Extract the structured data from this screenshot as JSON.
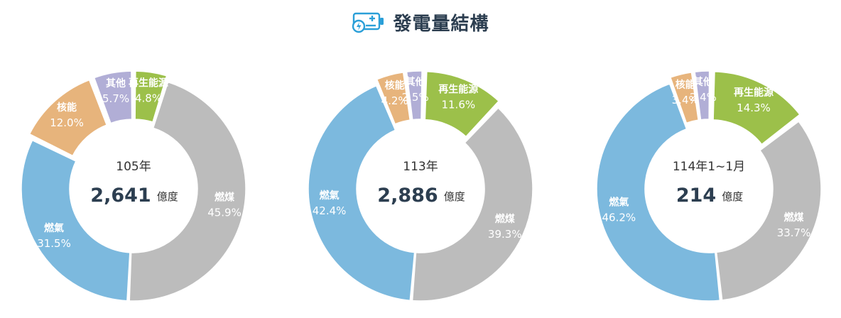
{
  "header": {
    "title": "發電量結構",
    "icon": "battery-charging-icon"
  },
  "colors": {
    "coal": "#bcbcbc",
    "gas": "#7cb9de",
    "nuclear": "#e7b47c",
    "other": "#b1aed6",
    "renewable": "#9cc04a",
    "icon": "#2a9fd8"
  },
  "chart_data": [
    {
      "type": "pie",
      "center_label": "105年",
      "total": "2,641",
      "unit": "億度",
      "slices": [
        {
          "key": "renewable",
          "name": "再生能源",
          "pct": "4.8%",
          "value": 4.8
        },
        {
          "key": "coal",
          "name": "燃煤",
          "pct": "45.9%",
          "value": 45.9
        },
        {
          "key": "gas",
          "name": "燃氣",
          "pct": "31.5%",
          "value": 31.5
        },
        {
          "key": "nuclear",
          "name": "核能",
          "pct": "12.0%",
          "value": 12.0
        },
        {
          "key": "other",
          "name": "其他",
          "pct": "5.7%",
          "value": 5.7
        }
      ]
    },
    {
      "type": "pie",
      "center_label": "113年",
      "total": "2,886",
      "unit": "億度",
      "slices": [
        {
          "key": "renewable",
          "name": "再生能源",
          "pct": "11.6%",
          "value": 11.6
        },
        {
          "key": "coal",
          "name": "燃煤",
          "pct": "39.3%",
          "value": 39.3
        },
        {
          "key": "gas",
          "name": "燃氣",
          "pct": "42.4%",
          "value": 42.4
        },
        {
          "key": "nuclear",
          "name": "核能",
          "pct": "4.2%",
          "value": 4.2
        },
        {
          "key": "other",
          "name": "其他",
          "pct": "2.5%",
          "value": 2.5
        }
      ]
    },
    {
      "type": "pie",
      "center_label": "114年1~1月",
      "total": "214",
      "unit": "億度",
      "slices": [
        {
          "key": "renewable",
          "name": "再生能源",
          "pct": "14.3%",
          "value": 14.3
        },
        {
          "key": "coal",
          "name": "燃煤",
          "pct": "33.7%",
          "value": 33.7
        },
        {
          "key": "gas",
          "name": "燃氣",
          "pct": "46.2%",
          "value": 46.2
        },
        {
          "key": "nuclear",
          "name": "核能",
          "pct": "3.4%",
          "value": 3.4
        },
        {
          "key": "other",
          "name": "其他",
          "pct": "2.4%",
          "value": 2.4
        }
      ]
    }
  ]
}
